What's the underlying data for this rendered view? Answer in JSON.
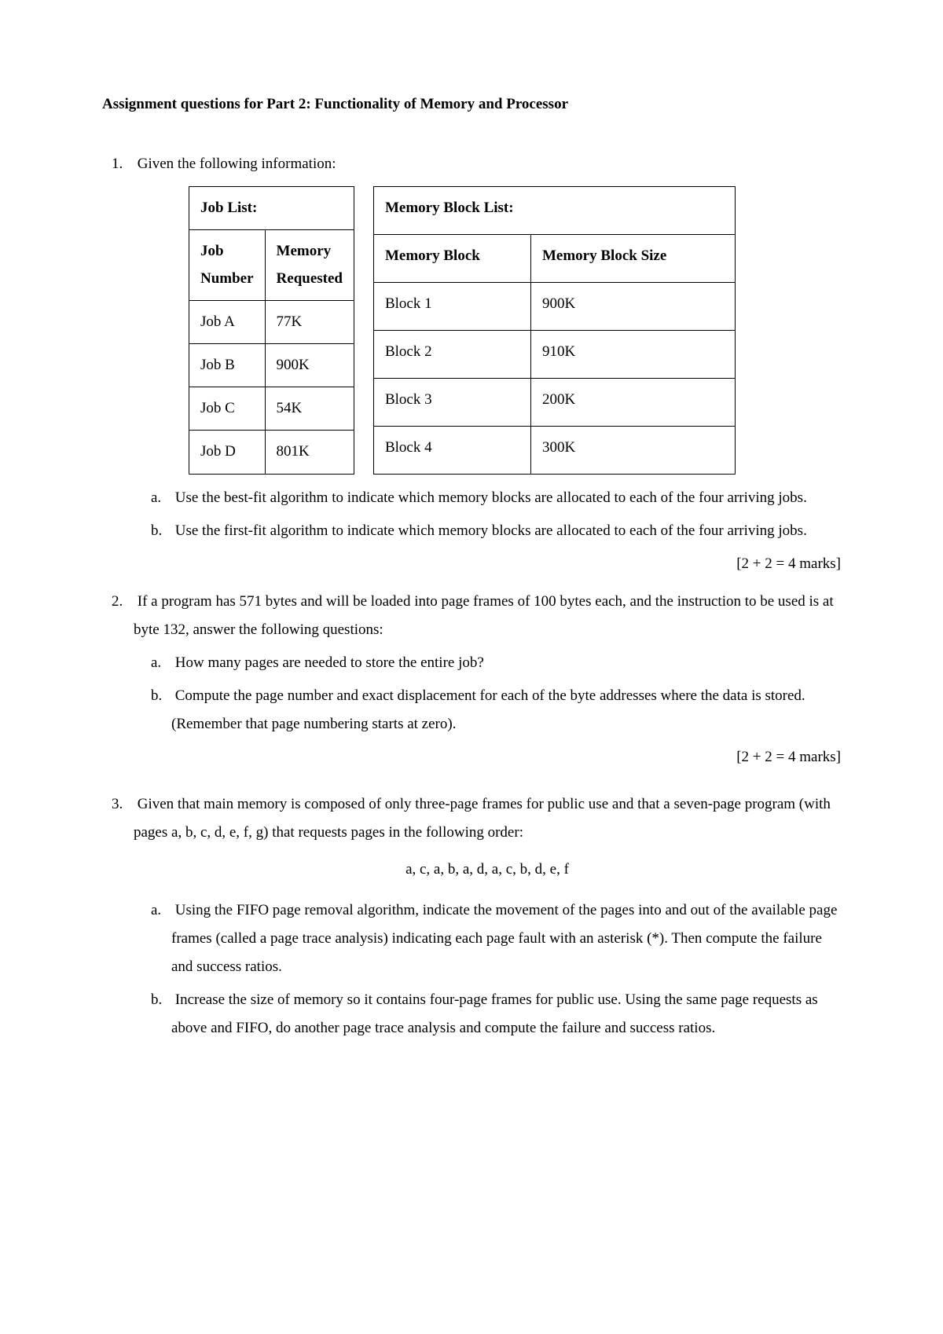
{
  "title": "Assignment questions for Part 2: Functionality of Memory and Processor",
  "q1": {
    "num": "1.",
    "intro": "Given the following information:",
    "jobTable": {
      "title": "Job List:",
      "col1": "Job Number",
      "col2": "Memory Requested",
      "rows": [
        [
          "Job A",
          "77K"
        ],
        [
          "Job B",
          "900K"
        ],
        [
          "Job C",
          "54K"
        ],
        [
          "Job D",
          "801K"
        ]
      ]
    },
    "memTable": {
      "title": "Memory Block List:",
      "col1": "Memory Block",
      "col2": "Memory Block Size",
      "rows": [
        [
          "Block 1",
          "900K"
        ],
        [
          "Block 2",
          "910K"
        ],
        [
          "Block 3",
          "200K"
        ],
        [
          "Block 4",
          "300K"
        ]
      ]
    },
    "a": {
      "letter": "a.",
      "text": "Use the best-fit algorithm to indicate which memory blocks are allocated to each of the four arriving jobs."
    },
    "b": {
      "letter": "b.",
      "text": "Use the first-fit algorithm to indicate which memory blocks are allocated to each of the four arriving jobs."
    },
    "marks": "[2 + 2 = 4 marks]"
  },
  "q2": {
    "num": "2.",
    "intro": "If a program has 571 bytes and will be loaded into page frames of 100 bytes each, and the instruction to be used is at byte 132, answer the following questions:",
    "a": {
      "letter": "a.",
      "text": "How many pages are needed to store the entire job?"
    },
    "b": {
      "letter": "b.",
      "text": "Compute the page number and exact displacement for each of the byte addresses where the data is stored. (Remember that page numbering starts at zero)."
    },
    "marks": "[2 + 2 = 4 marks]"
  },
  "q3": {
    "num": "3.",
    "intro": "Given that main memory is composed of only three-page frames for public use and that a seven-page program (with pages a, b, c, d, e, f, g) that requests pages in the following order:",
    "sequence": "a, c, a, b, a, d, a, c, b, d, e, f",
    "a": {
      "letter": "a.",
      "text": "Using the FIFO page removal algorithm, indicate the movement of the pages into and out of the available page frames (called a page trace analysis) indicating each page fault with an asterisk (*). Then compute the failure and success ratios."
    },
    "b": {
      "letter": "b.",
      "text": "Increase the size of memory so it contains four-page frames for public use. Using the same page requests as above and FIFO, do another page trace analysis and compute the failure and success ratios."
    }
  }
}
